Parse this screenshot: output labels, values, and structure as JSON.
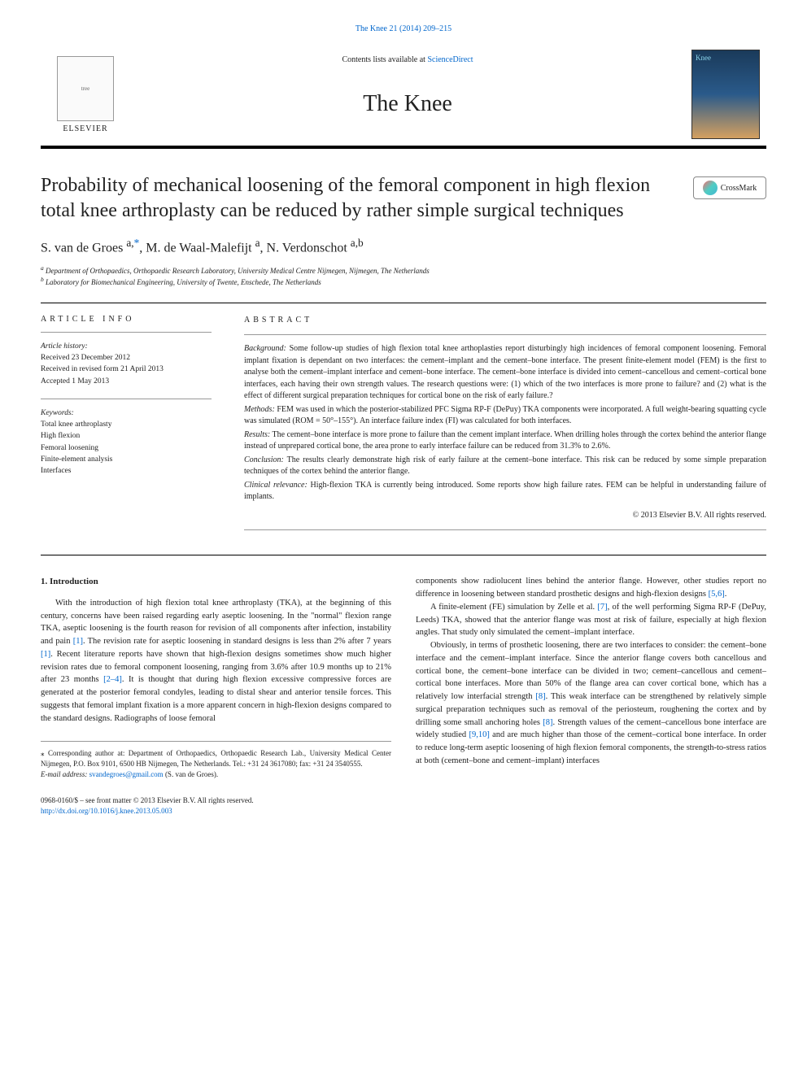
{
  "top_link": {
    "citation": "The Knee 21 (2014) 209–215"
  },
  "journal_header": {
    "publisher_name": "ELSEVIER",
    "publisher_logo_alt": "tree",
    "contents_prefix": "Contents lists available at ",
    "contents_link": "ScienceDirect",
    "journal_name": "The Knee",
    "cover_label": "Knee"
  },
  "crossmark": {
    "label": "CrossMark"
  },
  "title": "Probability of mechanical loosening of the femoral component in high flexion total knee arthroplasty can be reduced by rather simple surgical techniques",
  "authors": {
    "line": "S. van de Groes ",
    "a1_sup": "a,",
    "star": "*",
    "a2": ", M. de Waal-Malefijt ",
    "a2_sup": "a",
    "a3": ", N. Verdonschot ",
    "a3_sup": "a,b"
  },
  "affiliations": {
    "a": "Department of Orthopaedics, Orthopaedic Research Laboratory, University Medical Centre Nijmegen, Nijmegen, The Netherlands",
    "b": "Laboratory for Biomechanical Engineering, University of Twente, Enschede, The Netherlands"
  },
  "article_info": {
    "heading": "ARTICLE INFO",
    "history_label": "Article history:",
    "received": "Received 23 December 2012",
    "revised": "Received in revised form 21 April 2013",
    "accepted": "Accepted 1 May 2013",
    "keywords_label": "Keywords:",
    "keywords": [
      "Total knee arthroplasty",
      "High flexion",
      "Femoral loosening",
      "Finite-element analysis",
      "Interfaces"
    ]
  },
  "abstract": {
    "heading": "ABSTRACT",
    "background_label": "Background:",
    "background": " Some follow-up studies of high flexion total knee arthoplasties report disturbingly high incidences of femoral component loosening. Femoral implant fixation is dependant on two interfaces: the cement–implant and the cement–bone interface. The present finite-element model (FEM) is the first to analyse both the cement–implant interface and cement–bone interface. The cement–bone interface is divided into cement–cancellous and cement–cortical bone interfaces, each having their own strength values. The research questions were: (1) which of the two interfaces is more prone to failure? and (2) what is the effect of different surgical preparation techniques for cortical bone on the risk of early failure.?",
    "methods_label": "Methods:",
    "methods": " FEM was used in which the posterior-stabilized PFC Sigma RP-F (DePuy) TKA components were incorporated. A full weight-bearing squatting cycle was simulated (ROM = 50°–155°). An interface failure index (FI) was calculated for both interfaces.",
    "results_label": "Results:",
    "results": " The cement–bone interface is more prone to failure than the cement implant interface. When drilling holes through the cortex behind the anterior flange instead of unprepared cortical bone, the area prone to early interface failure can be reduced from 31.3% to 2.6%.",
    "conclusion_label": "Conclusion:",
    "conclusion": " The results clearly demonstrate high risk of early failure at the cement–bone interface. This risk can be reduced by some simple preparation techniques of the cortex behind the anterior flange.",
    "clinical_label": "Clinical relevance:",
    "clinical": " High-flexion TKA is currently being introduced. Some reports show high failure rates. FEM can be helpful in understanding failure of implants.",
    "copyright": "© 2013 Elsevier B.V. All rights reserved."
  },
  "body": {
    "intro_heading": "1. Introduction",
    "intro_p1a": "With the introduction of high flexion total knee arthroplasty (TKA), at the beginning of this century, concerns have been raised regarding early aseptic loosening. In the \"normal\" flexion range TKA, aseptic loosening is the fourth reason for revision of all components after infection, instability and pain ",
    "ref1": "[1]",
    "intro_p1b": ". The revision rate for aseptic loosening in standard designs is less than 2% after 7 years ",
    "ref1b": "[1]",
    "intro_p1c": ". Recent literature reports have shown that high-flexion designs sometimes show much higher revision rates due to femoral component loosening, ranging from 3.6% after 10.9 months up to 21% after 23 months ",
    "ref24": "[2–4]",
    "intro_p1d": ". It is thought that during high flexion excessive compressive forces are generated at the posterior femoral condyles, leading to distal shear and anterior tensile forces. This suggests that femoral implant fixation is a more apparent concern in high-flexion designs compared to the standard designs. Radiographs of loose femoral ",
    "col2_p1a": "components show radiolucent lines behind the anterior flange. However, other studies report no difference in loosening between standard prosthetic designs and high-flexion designs ",
    "ref56": "[5,6]",
    "col2_p1b": ".",
    "col2_p2a": "A finite-element (FE) simulation by Zelle et al. ",
    "ref7": "[7]",
    "col2_p2b": ", of the well performing Sigma RP-F (DePuy, Leeds) TKA, showed that the anterior flange was most at risk of failure, especially at high flexion angles. That study only simulated the cement–implant interface.",
    "col2_p3a": "Obviously, in terms of prosthetic loosening, there are two interfaces to consider: the cement–bone interface and the cement–implant interface. Since the anterior flange covers both cancellous and cortical bone, the cement–bone interface can be divided in two; cement–cancellous and cement–cortical bone interfaces. More than 50% of the flange area can cover cortical bone, which has a relatively low interfacial strength ",
    "ref8": "[8]",
    "col2_p3b": ". This weak interface can be strengthened by relatively simple surgical preparation techniques such as removal of the periosteum, roughening the cortex and by drilling some small anchoring holes ",
    "ref8b": "[8]",
    "col2_p3c": ". Strength values of the cement–cancellous bone interface are widely studied ",
    "ref910": "[9,10]",
    "col2_p3d": " and are much higher than those of the cement–cortical bone interface. In order to reduce long-term aseptic loosening of high flexion femoral components, the strength-to-stress ratios at both (cement–bone and cement–implant) interfaces"
  },
  "footnotes": {
    "corr_marker": "⁎",
    "corr_text": " Corresponding author at: Department of Orthopaedics, Orthopaedic Research Lab., University Medical Center Nijmegen, P.O. Box 9101, 6500 HB Nijmegen, The Netherlands. Tel.: +31 24 3617080; fax: +31 24 3540555.",
    "email_label": "E-mail address:",
    "email": "svandegroes@gmail.com",
    "email_suffix": " (S. van de Groes)."
  },
  "bottom": {
    "issn_line": "0968-0160/$ – see front matter © 2013 Elsevier B.V. All rights reserved.",
    "doi": "http://dx.doi.org/10.1016/j.knee.2013.05.003"
  },
  "colors": {
    "link": "#0066cc",
    "text": "#222222",
    "rule": "#000000",
    "thin_rule": "#999999"
  }
}
